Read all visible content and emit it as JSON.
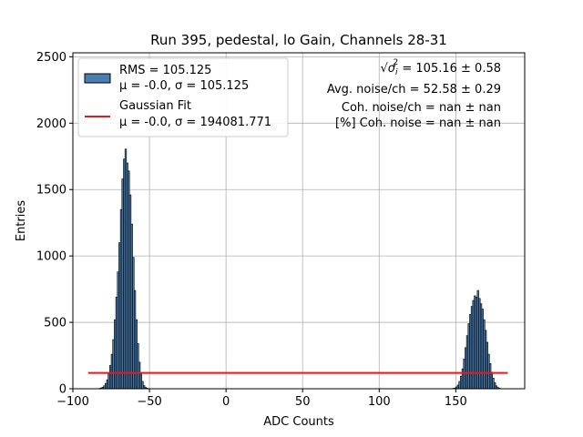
{
  "chart_data": {
    "type": "bar",
    "title": "Run 395, pedestal, lo Gain, Channels 28-31",
    "xlabel": "ADC Counts",
    "ylabel": "Entries",
    "xlim": [
      -100,
      195
    ],
    "ylim": [
      0,
      2530
    ],
    "xticks": [
      -100,
      -50,
      0,
      50,
      100,
      150
    ],
    "yticks": [
      0,
      500,
      1000,
      1500,
      2000,
      2500
    ],
    "grid": true,
    "legend_position": "upper-left",
    "histogram": {
      "name_line1": "RMS = 105.125",
      "name_line2": "μ = -0.0, σ = 105.125",
      "bin_width": 1,
      "bars": [
        {
          "x": -83,
          "y": 3
        },
        {
          "x": -82,
          "y": 6
        },
        {
          "x": -81,
          "y": 12
        },
        {
          "x": -80,
          "y": 22
        },
        {
          "x": -79,
          "y": 40
        },
        {
          "x": -78,
          "y": 68
        },
        {
          "x": -77,
          "y": 110
        },
        {
          "x": -76,
          "y": 175
        },
        {
          "x": -75,
          "y": 260
        },
        {
          "x": -74,
          "y": 370
        },
        {
          "x": -73,
          "y": 520
        },
        {
          "x": -72,
          "y": 690
        },
        {
          "x": -71,
          "y": 880
        },
        {
          "x": -70,
          "y": 1100
        },
        {
          "x": -69,
          "y": 1350
        },
        {
          "x": -68,
          "y": 1580
        },
        {
          "x": -67,
          "y": 1730
        },
        {
          "x": -66,
          "y": 1805
        },
        {
          "x": -65,
          "y": 1700
        },
        {
          "x": -64,
          "y": 1640
        },
        {
          "x": -63,
          "y": 1460
        },
        {
          "x": -62,
          "y": 1240
        },
        {
          "x": -61,
          "y": 990
        },
        {
          "x": -60,
          "y": 740
        },
        {
          "x": -59,
          "y": 520
        },
        {
          "x": -58,
          "y": 340
        },
        {
          "x": -57,
          "y": 200
        },
        {
          "x": -56,
          "y": 110
        },
        {
          "x": -55,
          "y": 55
        },
        {
          "x": -54,
          "y": 24
        },
        {
          "x": -53,
          "y": 10
        },
        {
          "x": -52,
          "y": 4
        },
        {
          "x": 148,
          "y": 3
        },
        {
          "x": 149,
          "y": 6
        },
        {
          "x": 150,
          "y": 14
        },
        {
          "x": 151,
          "y": 28
        },
        {
          "x": 152,
          "y": 55
        },
        {
          "x": 153,
          "y": 95
        },
        {
          "x": 154,
          "y": 150
        },
        {
          "x": 155,
          "y": 225
        },
        {
          "x": 156,
          "y": 310
        },
        {
          "x": 157,
          "y": 400
        },
        {
          "x": 158,
          "y": 490
        },
        {
          "x": 159,
          "y": 560
        },
        {
          "x": 160,
          "y": 620
        },
        {
          "x": 161,
          "y": 665
        },
        {
          "x": 162,
          "y": 700
        },
        {
          "x": 163,
          "y": 690
        },
        {
          "x": 164,
          "y": 740
        },
        {
          "x": 165,
          "y": 680
        },
        {
          "x": 166,
          "y": 640
        },
        {
          "x": 167,
          "y": 600
        },
        {
          "x": 168,
          "y": 520
        },
        {
          "x": 169,
          "y": 440
        },
        {
          "x": 170,
          "y": 350
        },
        {
          "x": 171,
          "y": 260
        },
        {
          "x": 172,
          "y": 190
        },
        {
          "x": 173,
          "y": 125
        },
        {
          "x": 174,
          "y": 80
        },
        {
          "x": 175,
          "y": 45
        },
        {
          "x": 176,
          "y": 22
        },
        {
          "x": 177,
          "y": 10
        },
        {
          "x": 178,
          "y": 4
        }
      ]
    },
    "gaussian_fit": {
      "name_line1": "Gaussian Fit",
      "name_line2": "μ = -0.0, σ = 194081.771",
      "x": [
        -90,
        184
      ],
      "y": [
        119,
        119
      ]
    },
    "annotations": [
      {
        "pre": "√",
        "body": "σ",
        "sub": "i",
        "sup": "2",
        "rest": " = 105.16 ± 0.58"
      },
      {
        "text": "Avg. noise/ch = 52.58 ± 0.29"
      },
      {
        "text": "Coh. noise/ch = nan ± nan"
      },
      {
        "text": "[%] Coh. noise = nan ± nan"
      }
    ]
  },
  "colors": {
    "bar_fill": "#4a7fb4",
    "bar_edge": "#000000",
    "fit_line": "#e8191b",
    "grid": "#b0b0b0"
  }
}
